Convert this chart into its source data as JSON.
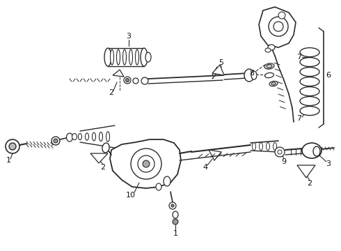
{
  "bg_color": "#ffffff",
  "line_color": "#2a2a2a",
  "fig_width": 4.9,
  "fig_height": 3.6,
  "dpi": 100,
  "title": "",
  "image_data": ""
}
